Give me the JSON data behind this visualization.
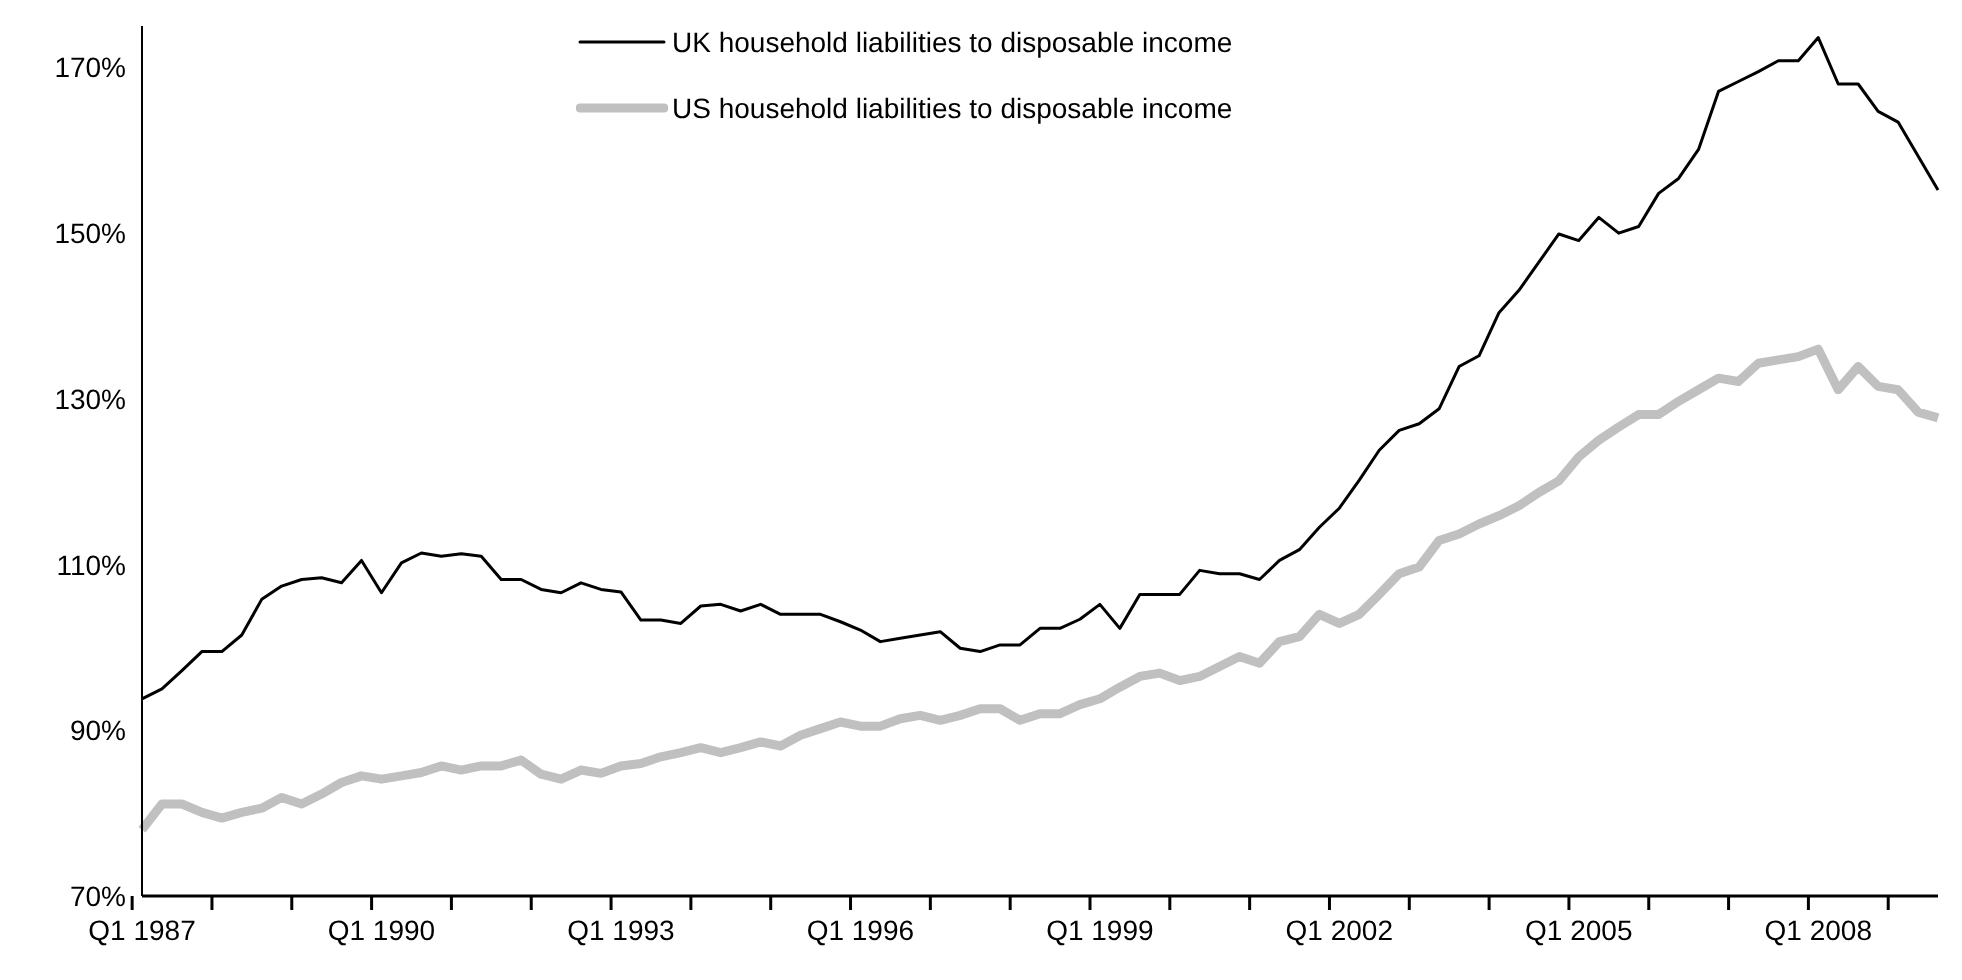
{
  "chart_data": {
    "type": "line",
    "categories": [
      "Q1 1987",
      null,
      null,
      null,
      null,
      null,
      null,
      null,
      null,
      null,
      null,
      null,
      "Q1 1990",
      null,
      null,
      null,
      null,
      null,
      null,
      null,
      null,
      null,
      null,
      null,
      "Q1 1993",
      null,
      null,
      null,
      null,
      null,
      null,
      null,
      null,
      null,
      null,
      null,
      "Q1 1996",
      null,
      null,
      null,
      null,
      null,
      null,
      null,
      null,
      null,
      null,
      null,
      "Q1 1999",
      null,
      null,
      null,
      null,
      null,
      null,
      null,
      null,
      null,
      null,
      null,
      "Q1 2002",
      null,
      null,
      null,
      null,
      null,
      null,
      null,
      null,
      null,
      null,
      null,
      "Q1 2005",
      null,
      null,
      null,
      null,
      null,
      null,
      null,
      null,
      null,
      null,
      null,
      "Q1 2008",
      null,
      null,
      null,
      null,
      null,
      null
    ],
    "series": [
      {
        "name": "UK household liabilities to disposable income",
        "color": "#000000",
        "values": [
          93.8,
          95.0,
          97.2,
          99.5,
          99.5,
          101.5,
          105.8,
          107.4,
          108.2,
          108.4,
          107.8,
          110.5,
          106.6,
          110.2,
          111.4,
          111.0,
          111.3,
          111.0,
          108.2,
          108.2,
          107.0,
          106.6,
          107.8,
          107.0,
          106.7,
          103.3,
          103.3,
          102.9,
          105.0,
          105.2,
          104.4,
          105.2,
          104.0,
          104.0,
          104.0,
          103.1,
          102.1,
          100.7,
          101.1,
          101.5,
          101.9,
          99.9,
          99.5,
          100.3,
          100.3,
          102.3,
          102.3,
          103.4,
          105.2,
          102.3,
          106.4,
          106.4,
          106.4,
          109.3,
          108.9,
          108.9,
          108.2,
          110.5,
          111.8,
          114.5,
          116.8,
          120.2,
          123.8,
          126.2,
          127.0,
          128.8,
          133.9,
          135.2,
          140.4,
          143.1,
          146.5,
          149.9,
          149.1,
          151.9,
          150.0,
          150.8,
          154.8,
          156.6,
          160.1,
          167.1,
          168.3,
          169.5,
          170.8,
          170.8,
          173.6,
          168.0,
          168.0,
          164.7,
          163.4,
          159.3,
          155.2
        ]
      },
      {
        "name": "US household liabilities to disposable income",
        "color": "#c0c0c0",
        "values": [
          78.0,
          81.1,
          81.1,
          80.1,
          79.4,
          80.1,
          80.6,
          81.9,
          81.1,
          82.3,
          83.7,
          84.5,
          84.1,
          84.5,
          84.9,
          85.7,
          85.2,
          85.7,
          85.7,
          86.4,
          84.7,
          84.1,
          85.2,
          84.8,
          85.7,
          86.0,
          86.8,
          87.3,
          87.9,
          87.3,
          87.9,
          88.6,
          88.1,
          89.4,
          90.2,
          91.0,
          90.5,
          90.5,
          91.4,
          91.8,
          91.2,
          91.8,
          92.6,
          92.6,
          91.2,
          92.0,
          92.0,
          93.1,
          93.8,
          95.2,
          96.5,
          96.9,
          96.0,
          96.5,
          97.7,
          98.9,
          98.1,
          100.7,
          101.3,
          104.0,
          102.9,
          104.0,
          106.4,
          108.9,
          109.7,
          112.9,
          113.7,
          114.9,
          115.9,
          117.1,
          118.7,
          120.1,
          123.0,
          125.0,
          126.6,
          128.1,
          128.1,
          129.7,
          131.1,
          132.5,
          132.1,
          134.3,
          134.7,
          135.1,
          136.0,
          131.1,
          133.9,
          131.5,
          131.1,
          128.4,
          127.7
        ]
      }
    ],
    "ylim": [
      70,
      175
    ],
    "yticks": [
      {
        "value": 70,
        "label": "70%"
      },
      {
        "value": 90,
        "label": "90%"
      },
      {
        "value": 110,
        "label": "110%"
      },
      {
        "value": 130,
        "label": "130%"
      },
      {
        "value": 150,
        "label": "150%"
      },
      {
        "value": 170,
        "label": "170%"
      }
    ],
    "grid": false,
    "legend": "top",
    "marker": "none",
    "line_style": "solid"
  }
}
